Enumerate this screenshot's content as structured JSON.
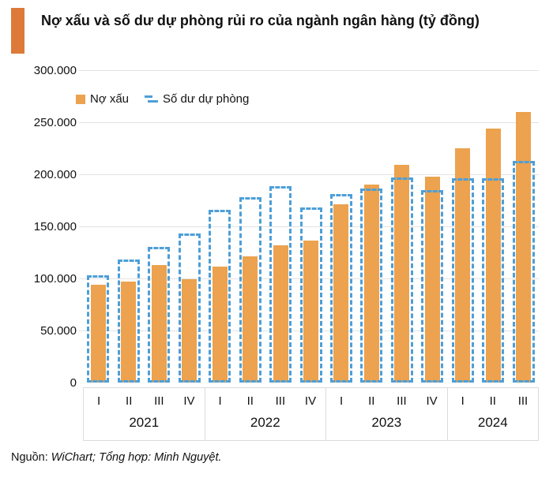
{
  "title": "Nợ xấu và số dư dự phòng rủi ro của ngành ngân hàng (tỷ đồng)",
  "legend": [
    {
      "label": "Nợ xấu",
      "marker": "solid-orange-square"
    },
    {
      "label": "Số dư dự phòng",
      "marker": "dashed-blue-lines"
    }
  ],
  "source": {
    "prefix": "Nguồn: ",
    "italic": "WiChart; Tổng hợp: Minh Nguyệt."
  },
  "colors": {
    "bad_debt_bar": "#ECA24E",
    "provision_outline": "#4D9FD8",
    "title_accent": "#DD7A3A",
    "gridline": "#E3E3E3",
    "axis_box_border": "#DCDCDC",
    "text": "#111111"
  },
  "chart_data": {
    "type": "bar",
    "title": "Nợ xấu và số dư dự phòng rủi ro của ngành ngân hàng (tỷ đồng)",
    "unit": "tỷ đồng",
    "groups": [
      {
        "year": "2021",
        "quarters": [
          "I",
          "II",
          "III",
          "IV"
        ]
      },
      {
        "year": "2022",
        "quarters": [
          "I",
          "II",
          "III",
          "IV"
        ]
      },
      {
        "year": "2023",
        "quarters": [
          "I",
          "II",
          "III",
          "IV"
        ]
      },
      {
        "year": "2024",
        "quarters": [
          "I",
          "II",
          "III"
        ]
      }
    ],
    "categories": [
      "2021-I",
      "2021-II",
      "2021-III",
      "2021-IV",
      "2022-I",
      "2022-II",
      "2022-III",
      "2022-IV",
      "2023-I",
      "2023-II",
      "2023-III",
      "2023-IV",
      "2024-I",
      "2024-II",
      "2024-III"
    ],
    "series": [
      {
        "name": "Nợ xấu",
        "style": "solid-orange",
        "values": [
          94000,
          97000,
          113000,
          99000,
          111000,
          121000,
          132000,
          136000,
          171000,
          190000,
          209000,
          198000,
          225000,
          244000,
          260000
        ]
      },
      {
        "name": "Số dư dự phòng",
        "style": "dashed-blue-outline",
        "values": [
          103000,
          118000,
          130000,
          143000,
          166000,
          178000,
          189000,
          168000,
          181000,
          186000,
          197000,
          185000,
          196000,
          196000,
          213000
        ]
      }
    ],
    "ylim": [
      0,
      300000
    ],
    "yticks": [
      0,
      50000,
      100000,
      150000,
      200000,
      250000,
      300000
    ],
    "ytick_labels": [
      "0",
      "50.000",
      "100.000",
      "150.000",
      "200.000",
      "250.000",
      "300.000"
    ],
    "grid": true,
    "legend_position": "top-left-inside"
  }
}
